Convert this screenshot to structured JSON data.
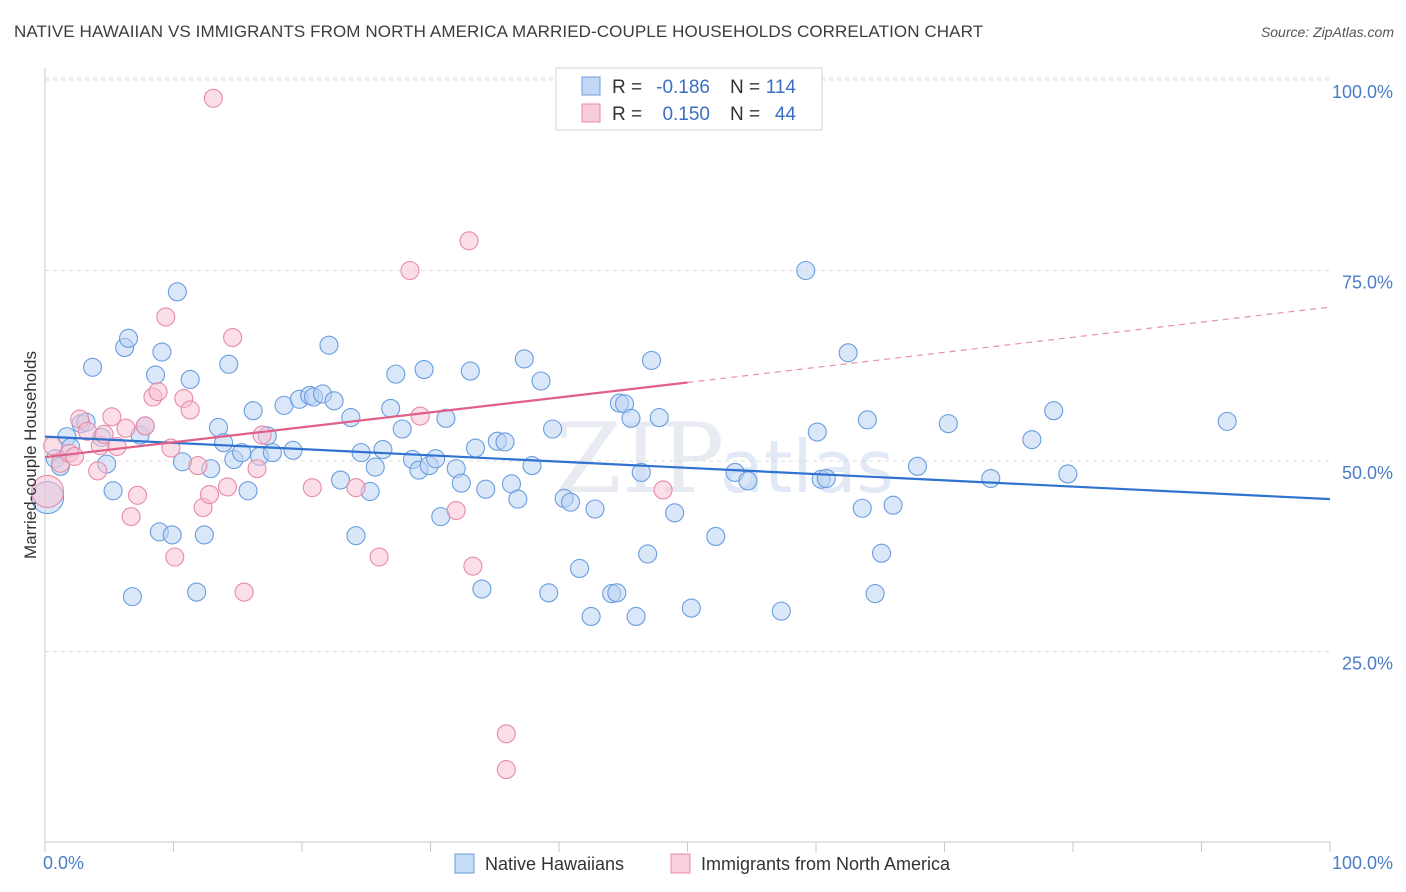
{
  "title": "NATIVE HAWAIIAN VS IMMIGRANTS FROM NORTH AMERICA MARRIED-COUPLE HOUSEHOLDS CORRELATION CHART",
  "source": "Source: ZipAtlas.com",
  "watermark": {
    "zip": "ZIP",
    "atlas": "atlas"
  },
  "stats": [
    {
      "r_label": "R =",
      "r_value": "-0.186",
      "n_label": "N =",
      "n_value": "114",
      "color": "#a9c8f0"
    },
    {
      "r_label": "R =",
      "r_value": "0.150",
      "n_label": "N =",
      "n_value": "44",
      "color": "#f5b8cb"
    }
  ],
  "chart_data": {
    "type": "scatter",
    "ylabel": "Married-couple Households",
    "xlim": [
      0,
      100
    ],
    "ylim": [
      0,
      100
    ],
    "x_tick_labels": [
      "0.0%",
      "100.0%"
    ],
    "y_ticks": [
      {
        "value": 25,
        "label": "25.0%"
      },
      {
        "value": 50,
        "label": "50.0%"
      },
      {
        "value": 75,
        "label": "75.0%"
      },
      {
        "value": 100,
        "label": "100.0%"
      }
    ],
    "grid": true,
    "legend_position": "bottom-center",
    "series": [
      {
        "name": "Native Hawaiians",
        "color": "#6a9de0",
        "fill": "#b9d3f3",
        "trend": {
          "x0": 0,
          "y0": 53.2,
          "x1": 100,
          "y1": 45.0,
          "color": "#2f72d0"
        },
        "points": [
          [
            0.2,
            45.2
          ],
          [
            0.8,
            50.3
          ],
          [
            1.2,
            49.3
          ],
          [
            1.7,
            53.2
          ],
          [
            2.0,
            51.8
          ],
          [
            2.8,
            54.9
          ],
          [
            3.2,
            55.1
          ],
          [
            3.7,
            62.3
          ],
          [
            4.4,
            53.1
          ],
          [
            4.8,
            49.6
          ],
          [
            5.3,
            46.1
          ],
          [
            6.2,
            64.9
          ],
          [
            6.5,
            66.1
          ],
          [
            6.8,
            32.2
          ],
          [
            7.4,
            53.4
          ],
          [
            7.8,
            54.6
          ],
          [
            8.6,
            61.3
          ],
          [
            8.9,
            40.7
          ],
          [
            9.1,
            64.3
          ],
          [
            9.9,
            40.3
          ],
          [
            10.3,
            72.2
          ],
          [
            10.7,
            49.9
          ],
          [
            11.3,
            60.7
          ],
          [
            11.8,
            32.8
          ],
          [
            12.4,
            40.3
          ],
          [
            12.9,
            49.0
          ],
          [
            13.5,
            54.4
          ],
          [
            13.9,
            52.4
          ],
          [
            14.3,
            62.7
          ],
          [
            14.7,
            50.2
          ],
          [
            15.3,
            51.1
          ],
          [
            15.8,
            46.1
          ],
          [
            16.2,
            56.6
          ],
          [
            16.7,
            50.6
          ],
          [
            17.3,
            53.3
          ],
          [
            17.7,
            51.1
          ],
          [
            18.6,
            57.3
          ],
          [
            19.3,
            51.4
          ],
          [
            19.8,
            58.1
          ],
          [
            20.6,
            58.6
          ],
          [
            20.9,
            58.4
          ],
          [
            21.6,
            58.8
          ],
          [
            22.1,
            65.2
          ],
          [
            22.5,
            57.9
          ],
          [
            23.0,
            47.5
          ],
          [
            23.8,
            55.7
          ],
          [
            24.2,
            40.2
          ],
          [
            24.6,
            51.1
          ],
          [
            25.3,
            46.0
          ],
          [
            25.7,
            49.2
          ],
          [
            26.3,
            51.5
          ],
          [
            26.9,
            56.9
          ],
          [
            27.3,
            61.4
          ],
          [
            27.8,
            54.2
          ],
          [
            28.6,
            50.2
          ],
          [
            29.1,
            48.8
          ],
          [
            29.5,
            62.0
          ],
          [
            29.9,
            49.4
          ],
          [
            30.4,
            50.3
          ],
          [
            30.8,
            42.7
          ],
          [
            31.2,
            55.6
          ],
          [
            32.0,
            49.0
          ],
          [
            32.4,
            47.1
          ],
          [
            33.1,
            61.8
          ],
          [
            33.5,
            51.7
          ],
          [
            34.0,
            33.2
          ],
          [
            34.3,
            46.3
          ],
          [
            35.2,
            52.6
          ],
          [
            35.8,
            52.5
          ],
          [
            36.3,
            47.0
          ],
          [
            36.8,
            45.0
          ],
          [
            37.3,
            63.4
          ],
          [
            37.9,
            49.4
          ],
          [
            38.6,
            60.5
          ],
          [
            39.2,
            32.7
          ],
          [
            39.5,
            54.2
          ],
          [
            40.4,
            45.1
          ],
          [
            40.9,
            44.6
          ],
          [
            41.6,
            35.9
          ],
          [
            42.5,
            29.6
          ],
          [
            42.8,
            43.7
          ],
          [
            44.1,
            32.6
          ],
          [
            44.5,
            32.7
          ],
          [
            44.7,
            57.6
          ],
          [
            45.1,
            57.5
          ],
          [
            45.6,
            55.6
          ],
          [
            46.0,
            29.6
          ],
          [
            46.4,
            48.5
          ],
          [
            46.9,
            37.8
          ],
          [
            47.2,
            63.2
          ],
          [
            47.8,
            55.7
          ],
          [
            49.0,
            43.2
          ],
          [
            50.3,
            30.7
          ],
          [
            52.2,
            40.1
          ],
          [
            53.7,
            48.5
          ],
          [
            54.7,
            47.4
          ],
          [
            57.3,
            30.3
          ],
          [
            59.2,
            75.0
          ],
          [
            60.1,
            53.8
          ],
          [
            60.4,
            47.6
          ],
          [
            60.8,
            47.7
          ],
          [
            62.5,
            64.2
          ],
          [
            63.6,
            43.8
          ],
          [
            64.0,
            55.4
          ],
          [
            64.6,
            32.6
          ],
          [
            65.1,
            37.9
          ],
          [
            66.0,
            44.2
          ],
          [
            67.9,
            49.3
          ],
          [
            70.3,
            54.9
          ],
          [
            73.6,
            47.7
          ],
          [
            76.8,
            52.8
          ],
          [
            78.5,
            56.6
          ],
          [
            79.6,
            48.3
          ],
          [
            92.0,
            55.2
          ]
        ]
      },
      {
        "name": "Immigrants from North America",
        "color": "#e88aa8",
        "fill": "#f7c3d3",
        "trend": {
          "x0": 0,
          "y0": 50.5,
          "x1": 50,
          "y1": 60.3,
          "dash_to": {
            "x": 100,
            "y": 70.2
          },
          "color": "#e0608a"
        },
        "points": [
          [
            0.2,
            46.0
          ],
          [
            0.6,
            52.0
          ],
          [
            1.2,
            49.7
          ],
          [
            1.9,
            51.0
          ],
          [
            2.3,
            50.6
          ],
          [
            2.7,
            55.5
          ],
          [
            3.3,
            53.9
          ],
          [
            4.1,
            48.7
          ],
          [
            4.3,
            52.0
          ],
          [
            4.6,
            53.5
          ],
          [
            5.2,
            55.8
          ],
          [
            5.6,
            51.9
          ],
          [
            6.3,
            54.3
          ],
          [
            6.7,
            42.7
          ],
          [
            7.2,
            45.5
          ],
          [
            7.8,
            54.6
          ],
          [
            8.4,
            58.4
          ],
          [
            8.8,
            59.1
          ],
          [
            9.4,
            68.9
          ],
          [
            9.8,
            51.7
          ],
          [
            10.1,
            37.4
          ],
          [
            10.8,
            58.2
          ],
          [
            11.3,
            56.7
          ],
          [
            11.9,
            49.4
          ],
          [
            12.3,
            43.9
          ],
          [
            12.8,
            45.6
          ],
          [
            13.1,
            97.6
          ],
          [
            14.2,
            46.6
          ],
          [
            14.6,
            66.2
          ],
          [
            15.5,
            32.8
          ],
          [
            16.5,
            49.0
          ],
          [
            16.9,
            53.4
          ],
          [
            20.8,
            46.5
          ],
          [
            24.2,
            46.5
          ],
          [
            26.0,
            37.4
          ],
          [
            28.4,
            75.0
          ],
          [
            29.2,
            55.9
          ],
          [
            32.0,
            43.5
          ],
          [
            33.0,
            78.9
          ],
          [
            33.3,
            36.2
          ],
          [
            35.9,
            14.2
          ],
          [
            35.9,
            9.5
          ],
          [
            47.3,
            100.0
          ],
          [
            48.1,
            46.2
          ]
        ]
      }
    ]
  }
}
